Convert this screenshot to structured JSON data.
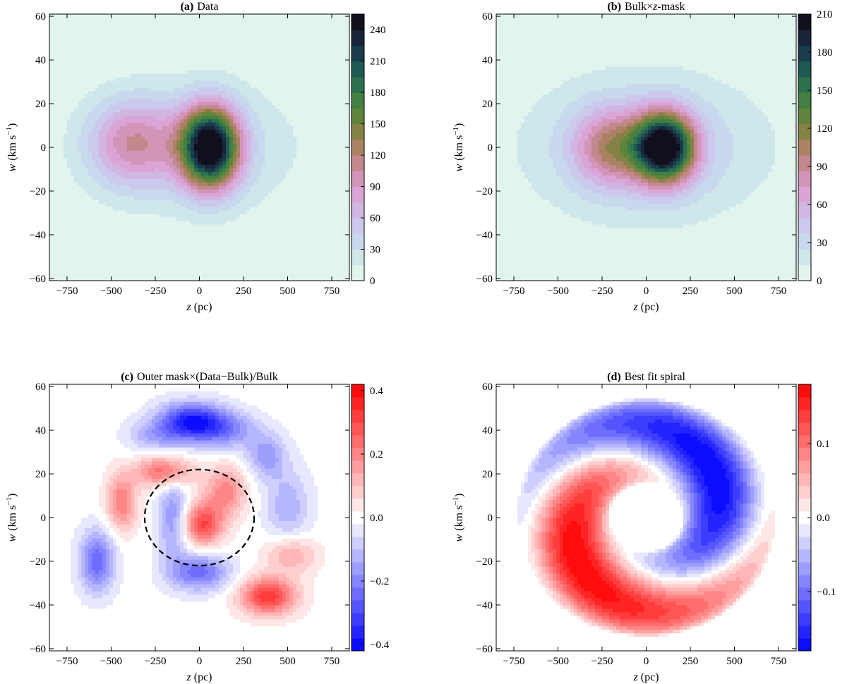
{
  "chart_data": [
    {
      "type": "heatmap",
      "panel_id": "a",
      "title_bold": "(a)",
      "title_text": "Data",
      "xlabel_var": "z",
      "xlabel_unit": "(pc)",
      "ylabel_var": "w",
      "ylabel_unit": "(km s",
      "ylabel_exp": "−1",
      "ylabel_close": ")",
      "xlim": [
        -850,
        850
      ],
      "ylim": [
        -61,
        61
      ],
      "xticks": [
        -750,
        -500,
        -250,
        0,
        250,
        500,
        750
      ],
      "xtick_labels": [
        "−750",
        "−500",
        "−250",
        "0",
        "250",
        "500",
        "750"
      ],
      "yticks": [
        -60,
        -40,
        -20,
        0,
        20,
        40,
        60
      ],
      "ytick_labels": [
        "−60",
        "−40",
        "−20",
        "0",
        "20",
        "40",
        "60"
      ],
      "colorbar": {
        "colormap": "cubehelix-teal",
        "range": [
          0,
          255
        ],
        "ticks": [
          0,
          30,
          60,
          90,
          120,
          150,
          180,
          210,
          240
        ],
        "tick_labels": [
          "0",
          "30",
          "60",
          "90",
          "120",
          "150",
          "180",
          "210",
          "240"
        ]
      },
      "components": [
        {
          "name": "main peak",
          "z_center": 60,
          "w_center": 0,
          "z_sigma": 115,
          "w_sigma": 13,
          "amplitude": 250
        },
        {
          "name": "secondary peak",
          "z_center": -380,
          "w_center": 2,
          "z_sigma": 180,
          "w_sigma": 14,
          "amplitude": 85
        },
        {
          "name": "broad envelope",
          "z_center": 0,
          "w_center": 0,
          "z_sigma": 420,
          "w_sigma": 22,
          "amplitude": 35
        }
      ]
    },
    {
      "type": "heatmap",
      "panel_id": "b",
      "title_bold": "(b)",
      "title_text": "Bulk×",
      "title_italic": "z",
      "title_tail": "-mask",
      "xlabel_var": "z",
      "xlabel_unit": "(pc)",
      "ylabel_var": "w",
      "ylabel_unit": "(km s",
      "ylabel_exp": "−1",
      "ylabel_close": ")",
      "xlim": [
        -850,
        850
      ],
      "ylim": [
        -61,
        61
      ],
      "xticks": [
        -750,
        -500,
        -250,
        0,
        250,
        500,
        750
      ],
      "xtick_labels": [
        "−750",
        "−500",
        "−250",
        "0",
        "250",
        "500",
        "750"
      ],
      "yticks": [
        -60,
        -40,
        -20,
        0,
        20,
        40,
        60
      ],
      "ytick_labels": [
        "−60",
        "−40",
        "−20",
        "0",
        "20",
        "40",
        "60"
      ],
      "colorbar": {
        "colormap": "cubehelix-teal",
        "range": [
          0,
          210
        ],
        "ticks": [
          0,
          30,
          60,
          90,
          120,
          150,
          180,
          210
        ],
        "tick_labels": [
          "0",
          "30",
          "60",
          "90",
          "120",
          "150",
          "180",
          "210"
        ]
      },
      "components": [
        {
          "name": "main peak",
          "z_center": 100,
          "w_center": 0,
          "z_sigma": 120,
          "w_sigma": 11,
          "amplitude": 200
        },
        {
          "name": "secondary peak",
          "z_center": -210,
          "w_center": 0,
          "z_sigma": 140,
          "w_sigma": 12,
          "amplitude": 70
        },
        {
          "name": "broad envelope",
          "z_center": 0,
          "w_center": 0,
          "z_sigma": 480,
          "w_sigma": 24,
          "amplitude": 40
        }
      ]
    },
    {
      "type": "heatmap",
      "panel_id": "c",
      "title_bold": "(c)",
      "title_text": "Outer mask×(Data−Bulk)/Bulk",
      "xlabel_var": "z",
      "xlabel_unit": "(pc)",
      "ylabel_var": "w",
      "ylabel_unit": "(km s",
      "ylabel_exp": "−1",
      "ylabel_close": ")",
      "xlim": [
        -850,
        850
      ],
      "ylim": [
        -61,
        61
      ],
      "xticks": [
        -750,
        -500,
        -250,
        0,
        250,
        500,
        750
      ],
      "xtick_labels": [
        "−750",
        "−500",
        "−250",
        "0",
        "250",
        "500",
        "750"
      ],
      "yticks": [
        -60,
        -40,
        -20,
        0,
        20,
        40,
        60
      ],
      "ytick_labels": [
        "−60",
        "−40",
        "−20",
        "0",
        "20",
        "40",
        "60"
      ],
      "colorbar": {
        "colormap": "bwr",
        "range": [
          -0.42,
          0.42
        ],
        "ticks": [
          -0.4,
          -0.2,
          0.0,
          0.2,
          0.4
        ],
        "tick_labels": [
          "−0.4",
          "−0.2",
          "0.0",
          "0.2",
          "0.4"
        ]
      },
      "annotation": {
        "shape": "dashed circle",
        "z_center": 0,
        "w_center": 0,
        "z_radius": 310,
        "w_radius": 22
      },
      "components": [
        {
          "z_center": -50,
          "w_center": 44,
          "z_sigma": 130,
          "w_sigma": 6,
          "amplitude": -0.36
        },
        {
          "z_center": 150,
          "w_center": 40,
          "z_sigma": 130,
          "w_sigma": 6,
          "amplitude": -0.18
        },
        {
          "z_center": -260,
          "w_center": 37,
          "z_sigma": 110,
          "w_sigma": 5,
          "amplitude": -0.12
        },
        {
          "z_center": 380,
          "w_center": 28,
          "z_sigma": 80,
          "w_sigma": 7,
          "amplitude": -0.16
        },
        {
          "z_center": 500,
          "w_center": 5,
          "z_sigma": 90,
          "w_sigma": 12,
          "amplitude": -0.13
        },
        {
          "z_center": -580,
          "w_center": -20,
          "z_sigma": 70,
          "w_sigma": 10,
          "amplitude": -0.25
        },
        {
          "z_center": 0,
          "w_center": -25,
          "z_sigma": 120,
          "w_sigma": 6,
          "amplitude": -0.24
        },
        {
          "z_center": -150,
          "w_center": 0,
          "z_sigma": 60,
          "w_sigma": 14,
          "amplitude": -0.18
        },
        {
          "z_center": -200,
          "w_center": 21,
          "z_sigma": 110,
          "w_sigma": 5,
          "amplitude": 0.26
        },
        {
          "z_center": -440,
          "w_center": 7,
          "z_sigma": 60,
          "w_sigma": 9,
          "amplitude": 0.22
        },
        {
          "z_center": 150,
          "w_center": 12,
          "z_sigma": 80,
          "w_sigma": 8,
          "amplitude": 0.2
        },
        {
          "z_center": 20,
          "w_center": -3,
          "z_sigma": 80,
          "w_sigma": 7,
          "amplitude": 0.3
        },
        {
          "z_center": 390,
          "w_center": -36,
          "z_sigma": 110,
          "w_sigma": 6,
          "amplitude": 0.34
        },
        {
          "z_center": 520,
          "w_center": -17,
          "z_sigma": 100,
          "w_sigma": 6,
          "amplitude": 0.15
        }
      ]
    },
    {
      "type": "heatmap",
      "panel_id": "d",
      "title_bold": "(d)",
      "title_text": "Best fit spiral",
      "xlabel_var": "z",
      "xlabel_unit": "(pc)",
      "ylabel_var": "w",
      "ylabel_unit": "(km s",
      "ylabel_exp": "−1",
      "ylabel_close": ")",
      "xlim": [
        -850,
        850
      ],
      "ylim": [
        -61,
        61
      ],
      "xticks": [
        -750,
        -500,
        -250,
        0,
        250,
        500,
        750
      ],
      "xtick_labels": [
        "−750",
        "−500",
        "−250",
        "0",
        "250",
        "500",
        "750"
      ],
      "yticks": [
        -60,
        -40,
        -20,
        0,
        20,
        40,
        60
      ],
      "ytick_labels": [
        "−60",
        "−40",
        "−20",
        "0",
        "20",
        "40",
        "60"
      ],
      "colorbar": {
        "colormap": "bwr",
        "range": [
          -0.18,
          0.18
        ],
        "ticks": [
          -0.1,
          0.0,
          0.1
        ],
        "tick_labels": [
          "−0.1",
          "0.0",
          "0.1"
        ]
      },
      "spiral": {
        "amplitude": 0.18,
        "inner_radius": 0.3,
        "outer_radius": 1.05,
        "winding": 3.3,
        "phase": 0.0
      }
    }
  ]
}
